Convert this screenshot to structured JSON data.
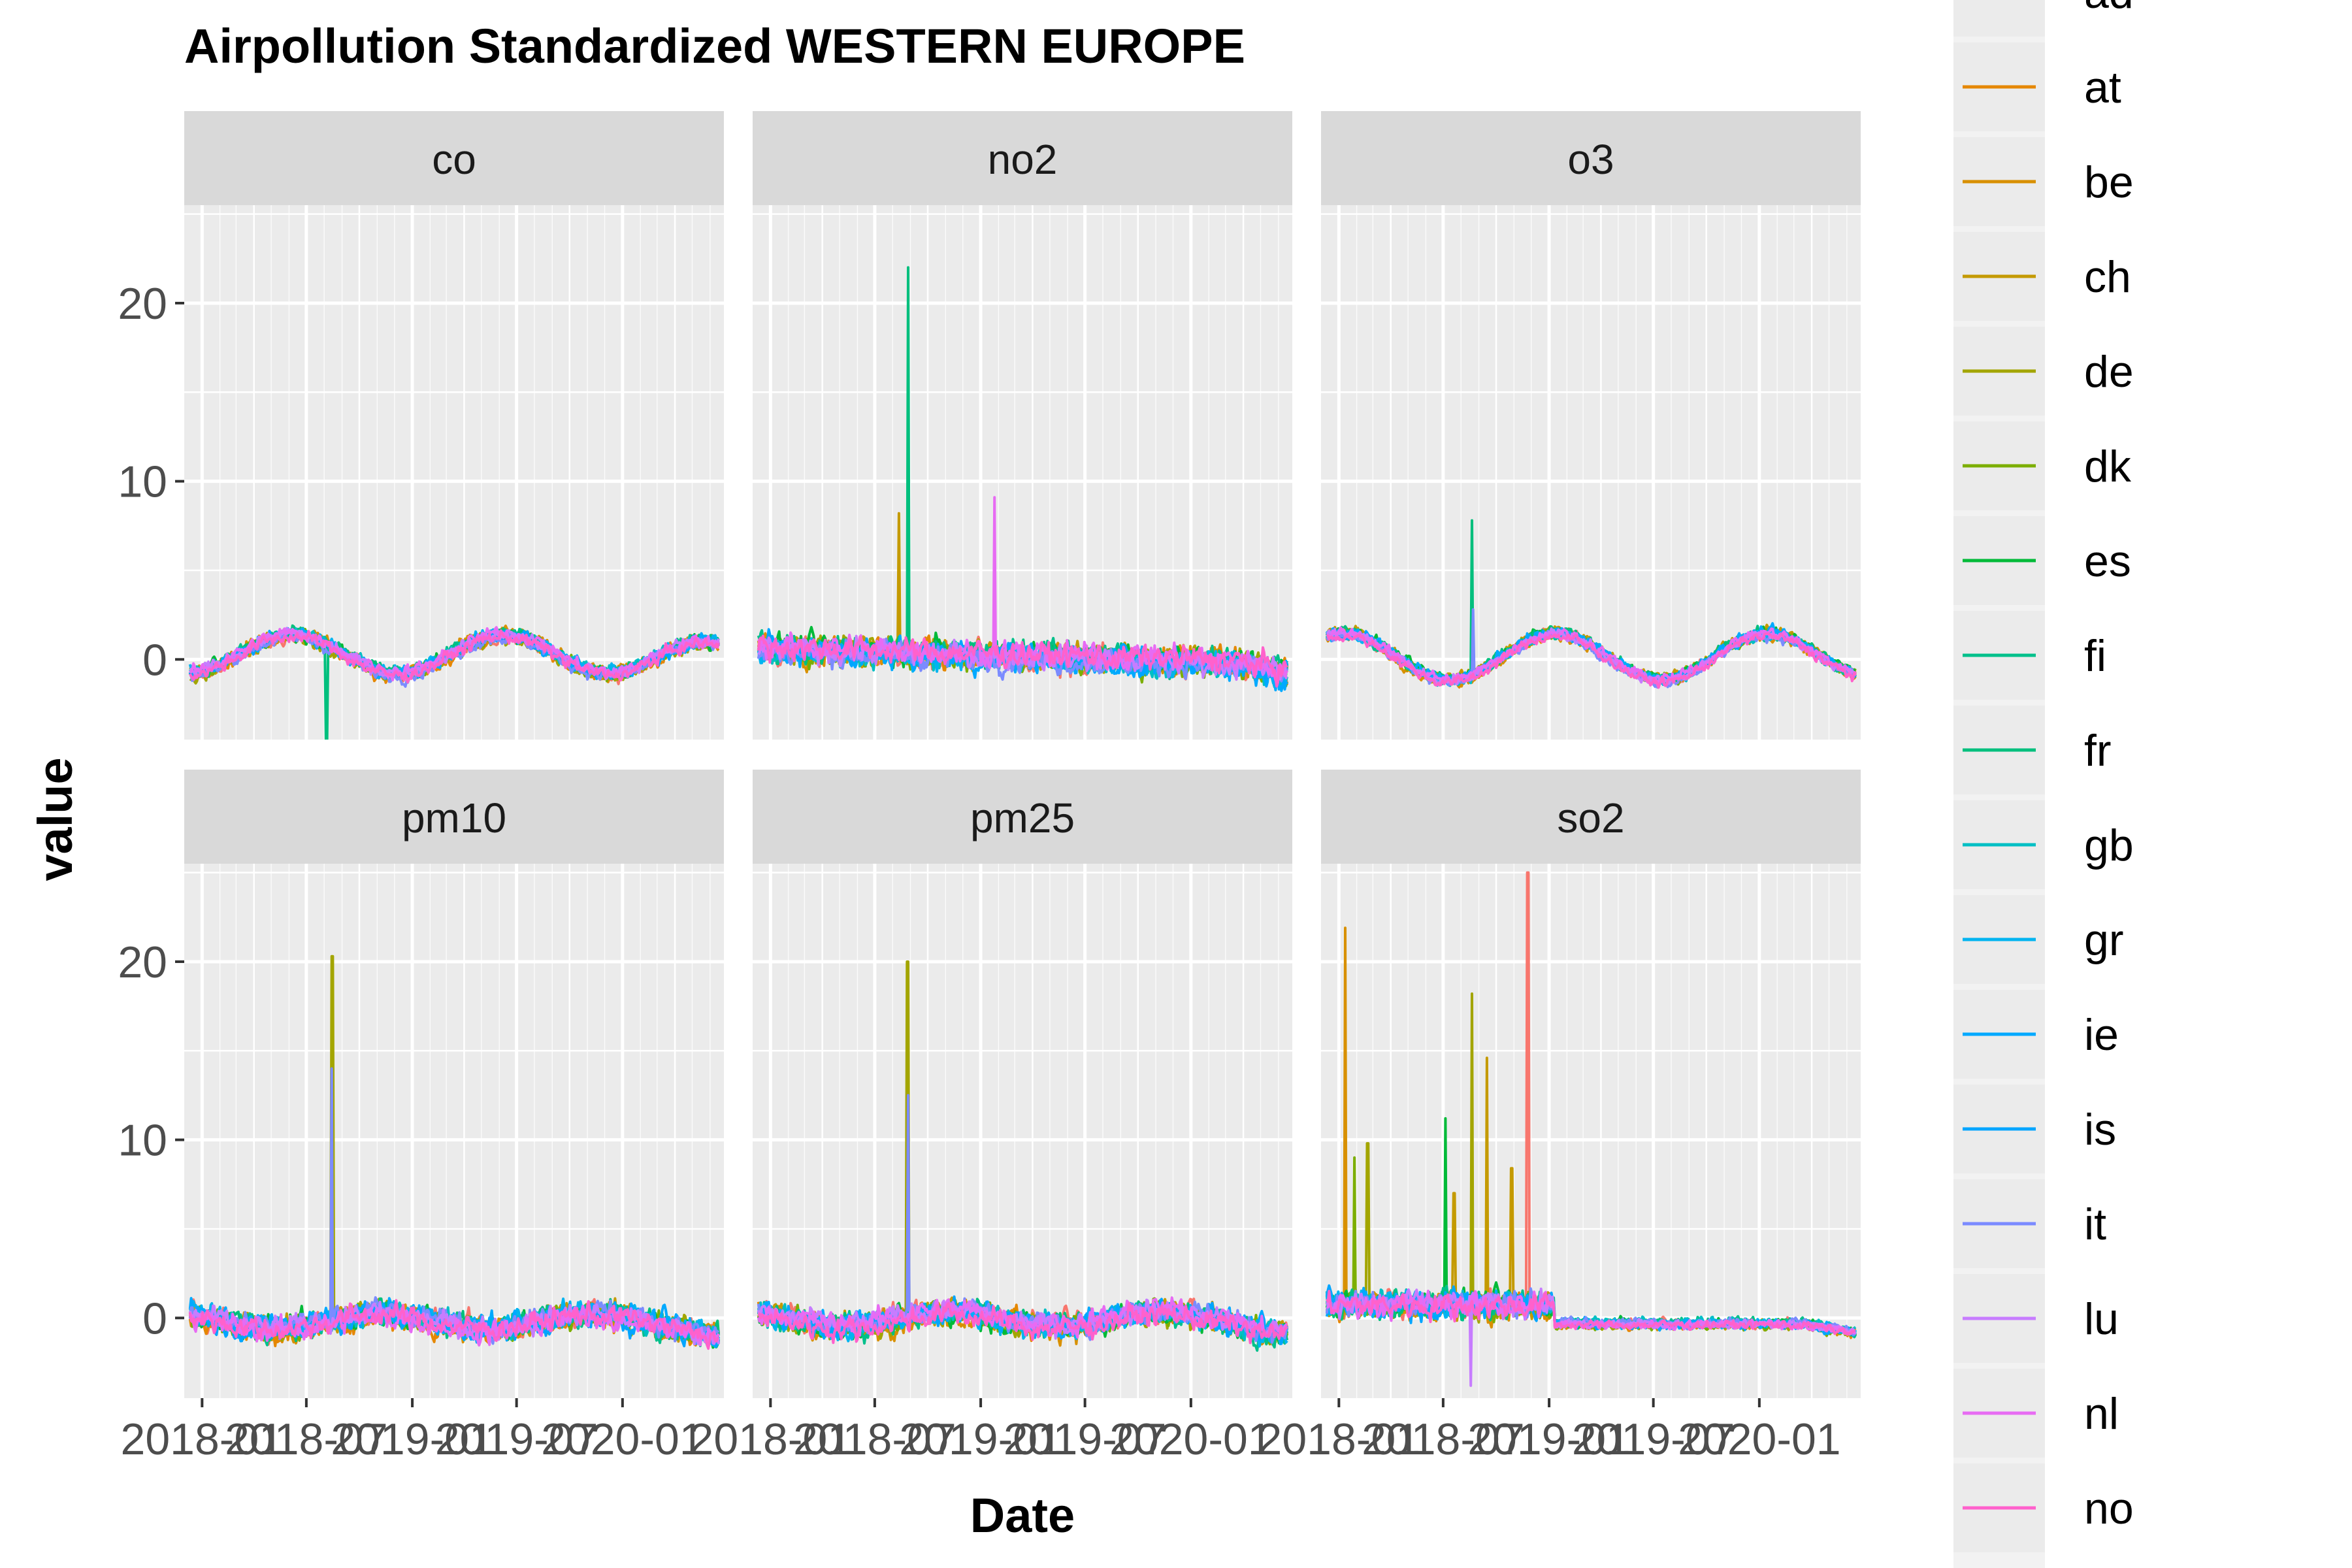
{
  "chart_data": {
    "type": "line",
    "title": "Airpollution Standardized WESTERN EUROPE",
    "xlabel": "Date",
    "ylabel": "value",
    "facets": [
      "co",
      "no2",
      "o3",
      "pm10",
      "pm25",
      "so2"
    ],
    "facet_layout": "3 columns x 2 rows",
    "xlim": [
      "2017-12-01",
      "2020-06-25"
    ],
    "x_tick_values": [
      "2018-01",
      "2018-07",
      "2019-01",
      "2019-07",
      "2020-01"
    ],
    "x_tick_labels": [
      "2018-01",
      "2018-07",
      "2019-01",
      "2019-07",
      "2020-01"
    ],
    "ylim": [
      -4.5,
      25.5
    ],
    "y_ticks": [
      0,
      10,
      20
    ],
    "grid": true,
    "legend": {
      "position": "right",
      "entries": [
        {
          "name": "ad",
          "color": "#F8766D"
        },
        {
          "name": "at",
          "color": "#E58700"
        },
        {
          "name": "be",
          "color": "#D89000"
        },
        {
          "name": "ch",
          "color": "#C49A00"
        },
        {
          "name": "de",
          "color": "#A3A500"
        },
        {
          "name": "dk",
          "color": "#7CAE00"
        },
        {
          "name": "es",
          "color": "#00BA38"
        },
        {
          "name": "fi",
          "color": "#00C08B"
        },
        {
          "name": "fr",
          "color": "#00BF7D"
        },
        {
          "name": "gb",
          "color": "#00BFC4"
        },
        {
          "name": "gr",
          "color": "#00B4F0"
        },
        {
          "name": "ie",
          "color": "#00A9FF"
        },
        {
          "name": "is",
          "color": "#00A5FF"
        },
        {
          "name": "it",
          "color": "#7B8BFF"
        },
        {
          "name": "lu",
          "color": "#C77CFF"
        },
        {
          "name": "nl",
          "color": "#E76BF3"
        },
        {
          "name": "no",
          "color": "#FF61CC"
        }
      ]
    },
    "series_description": "Daily standardized values per country, one line per country in each facet",
    "spikes": [
      {
        "facet": "co",
        "series": "fr",
        "date": "2018-08-05",
        "value": -4.6
      },
      {
        "facet": "no2",
        "series": "fr",
        "date": "2018-08-28",
        "value": 22.0
      },
      {
        "facet": "no2",
        "series": "ch",
        "date": "2018-08-12",
        "value": 8.2
      },
      {
        "facet": "no2",
        "series": "nl",
        "date": "2019-01-25",
        "value": 9.1
      },
      {
        "facet": "o3",
        "series": "fr",
        "date": "2018-08-20",
        "value": 7.8
      },
      {
        "facet": "o3",
        "series": "it",
        "date": "2018-08-22",
        "value": 2.8
      },
      {
        "facet": "pm10",
        "series": "de",
        "date": "2018-08-15",
        "value": 20.3
      },
      {
        "facet": "pm10",
        "series": "it",
        "date": "2018-08-14",
        "value": 14.0
      },
      {
        "facet": "pm25",
        "series": "de",
        "date": "2018-08-27",
        "value": 20.0
      },
      {
        "facet": "pm25",
        "series": "it",
        "date": "2018-08-28",
        "value": 12.5
      },
      {
        "facet": "so2",
        "series": "be",
        "date": "2018-01-12",
        "value": 21.9
      },
      {
        "facet": "so2",
        "series": "dk",
        "date": "2018-01-28",
        "value": 9.0
      },
      {
        "facet": "so2",
        "series": "de",
        "date": "2018-02-20",
        "value": 9.8
      },
      {
        "facet": "so2",
        "series": "es",
        "date": "2018-07-05",
        "value": 11.2
      },
      {
        "facet": "so2",
        "series": "ch",
        "date": "2018-07-20",
        "value": 7.0
      },
      {
        "facet": "so2",
        "series": "de",
        "date": "2018-08-20",
        "value": 18.2
      },
      {
        "facet": "so2",
        "series": "ch",
        "date": "2018-09-15",
        "value": 14.6
      },
      {
        "facet": "so2",
        "series": "ch",
        "date": "2018-10-28",
        "value": 8.4
      },
      {
        "facet": "so2",
        "series": "ad",
        "date": "2018-11-25",
        "value": 25.0
      },
      {
        "facet": "so2",
        "series": "lu",
        "date": "2018-08-18",
        "value": -3.8
      }
    ]
  }
}
